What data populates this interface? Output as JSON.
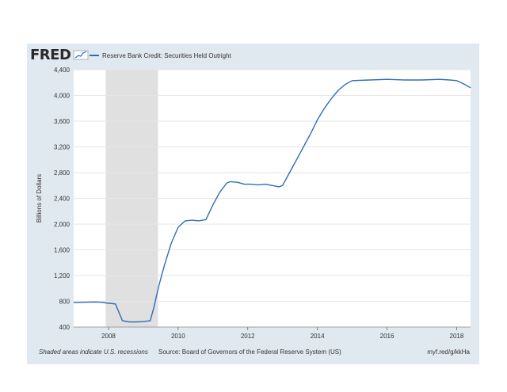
{
  "header": {
    "logo_text": "FRED",
    "legend_label": "Reserve Bank Credit: Securities Held Outright"
  },
  "footer": {
    "recession_note": "Shaded areas indicate U.S. recessions",
    "source": "Source: Board of Governors of the Federal Reserve System (US)",
    "url": "myf.red/g/kkHa"
  },
  "colors": {
    "line": "#2f6db5",
    "recession": "#e0e0e0",
    "frame": "#e1e9f0",
    "grid": "#e6e6e6"
  },
  "chart_data": {
    "type": "line",
    "title": "",
    "xlabel": "",
    "ylabel": "Billions of Dollars",
    "xlim": [
      2007.0,
      2018.4
    ],
    "ylim": [
      400,
      4400
    ],
    "yticks": [
      400,
      800,
      1200,
      1600,
      2000,
      2400,
      2800,
      3200,
      3600,
      4000,
      4400
    ],
    "ytick_labels": [
      "400",
      "800",
      "1,200",
      "1,600",
      "2,000",
      "2,400",
      "2,800",
      "3,200",
      "3,600",
      "4,000",
      "4,400"
    ],
    "xticks": [
      2008,
      2010,
      2012,
      2014,
      2016,
      2018
    ],
    "xtick_labels": [
      "2008",
      "2010",
      "2012",
      "2014",
      "2016",
      "2018"
    ],
    "grid": "horizontal",
    "recessions": [
      {
        "start": 2007.92,
        "end": 2009.42
      }
    ],
    "series": [
      {
        "name": "Reserve Bank Credit: Securities Held Outright",
        "x": [
          2007.0,
          2007.3,
          2007.6,
          2007.8,
          2007.92,
          2008.2,
          2008.4,
          2008.6,
          2008.8,
          2009.0,
          2009.2,
          2009.3,
          2009.45,
          2009.6,
          2009.8,
          2010.0,
          2010.2,
          2010.4,
          2010.6,
          2010.8,
          2011.0,
          2011.2,
          2011.4,
          2011.5,
          2011.7,
          2011.9,
          2012.1,
          2012.3,
          2012.5,
          2012.7,
          2012.9,
          2013.0,
          2013.2,
          2013.4,
          2013.6,
          2013.8,
          2014.0,
          2014.2,
          2014.4,
          2014.6,
          2014.8,
          2015.0,
          2015.5,
          2016.0,
          2016.5,
          2017.0,
          2017.5,
          2017.8,
          2018.0,
          2018.2,
          2018.4
        ],
        "y": [
          780,
          785,
          790,
          785,
          775,
          760,
          500,
          480,
          480,
          485,
          500,
          700,
          1050,
          1350,
          1700,
          1950,
          2050,
          2060,
          2050,
          2070,
          2300,
          2500,
          2640,
          2660,
          2650,
          2620,
          2620,
          2610,
          2620,
          2600,
          2580,
          2600,
          2800,
          3000,
          3200,
          3400,
          3620,
          3800,
          3950,
          4080,
          4170,
          4230,
          4240,
          4250,
          4240,
          4240,
          4250,
          4240,
          4230,
          4180,
          4120
        ]
      }
    ]
  }
}
